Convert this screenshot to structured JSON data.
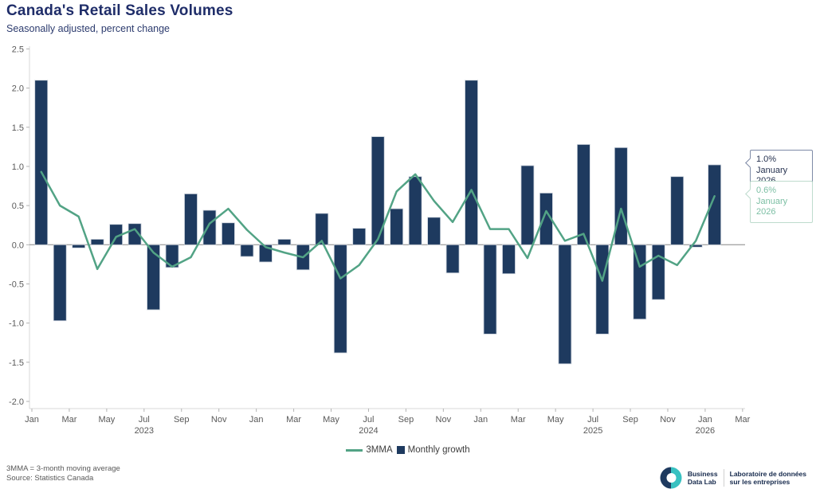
{
  "header": {
    "title": "Canada's Retail Sales Volumes",
    "subtitle": "Seasonally adjusted, percent change"
  },
  "chart_data": {
    "type": "bar+line",
    "categories": [
      "Jan 2023",
      "Feb 2023",
      "Mar 2023",
      "Apr 2023",
      "May 2023",
      "Jun 2023",
      "Jul 2023",
      "Aug 2023",
      "Sep 2023",
      "Oct 2023",
      "Nov 2023",
      "Dec 2023",
      "Jan 2024",
      "Feb 2024",
      "Mar 2024",
      "Apr 2024",
      "May 2024",
      "Jun 2024",
      "Jul 2024",
      "Aug 2024",
      "Sep 2024",
      "Oct 2024",
      "Nov 2024",
      "Dec 2024",
      "Jan 2025",
      "Feb 2025",
      "Mar 2025",
      "Apr 2025",
      "May 2025",
      "Jun 2025",
      "Jul 2025",
      "Aug 2025",
      "Sep 2025",
      "Oct 2025",
      "Nov 2025",
      "Dec 2025",
      "Jan 2026"
    ],
    "series": [
      {
        "name": "Monthly growth",
        "type": "bar",
        "color": "#1e3a5f",
        "values": [
          2.1,
          -0.97,
          -0.04,
          0.07,
          0.26,
          0.27,
          -0.83,
          -0.29,
          0.65,
          0.44,
          0.28,
          -0.15,
          -0.22,
          0.07,
          -0.32,
          0.4,
          -1.38,
          0.21,
          1.38,
          0.46,
          0.87,
          0.35,
          -0.36,
          2.1,
          -1.14,
          -0.37,
          1.01,
          0.66,
          -1.52,
          1.28,
          -1.14,
          1.24,
          -0.95,
          -0.7,
          0.87,
          -0.03,
          1.02
        ]
      },
      {
        "name": "3MMA",
        "type": "line",
        "color": "#52a385",
        "values": [
          0.93,
          0.5,
          0.36,
          -0.31,
          0.1,
          0.2,
          -0.1,
          -0.28,
          -0.16,
          0.27,
          0.46,
          0.19,
          -0.03,
          -0.1,
          -0.16,
          0.05,
          -0.43,
          -0.26,
          0.07,
          0.68,
          0.9,
          0.56,
          0.29,
          0.7,
          0.2,
          0.2,
          -0.17,
          0.43,
          0.05,
          0.14,
          -0.46,
          0.46,
          -0.28,
          -0.14,
          -0.26,
          0.05,
          0.62
        ]
      }
    ],
    "ylim": [
      -2.0,
      2.5
    ],
    "y_ticks": [
      "2.5",
      "2.0",
      "1.5",
      "1.0",
      "0.5",
      "0.0",
      "-0.5",
      "-1.0",
      "-1.5",
      "-2.0"
    ],
    "x_ticks": [
      {
        "label": "Jan"
      },
      {
        "label": "Mar"
      },
      {
        "label": "May"
      },
      {
        "label": "Jul",
        "year": "2023"
      },
      {
        "label": "Sep"
      },
      {
        "label": "Nov"
      },
      {
        "label": "Jan"
      },
      {
        "label": "Mar"
      },
      {
        "label": "May"
      },
      {
        "label": "Jul",
        "year": "2024"
      },
      {
        "label": "Sep"
      },
      {
        "label": "Nov"
      },
      {
        "label": "Jan"
      },
      {
        "label": "Mar"
      },
      {
        "label": "May"
      },
      {
        "label": "Jul",
        "year": "2025"
      },
      {
        "label": "Sep"
      },
      {
        "label": "Nov"
      },
      {
        "label": "Jan",
        "year": "2026"
      },
      {
        "label": "Mar"
      }
    ],
    "grid": "zero-line-only",
    "legend_position": "bottom-center",
    "annotations": [
      {
        "value": "1.0%",
        "label": "January 2026",
        "series": "Monthly growth"
      },
      {
        "value": "0.6%",
        "label": "January 2026",
        "series": "3MMA"
      }
    ]
  },
  "legend": [
    {
      "label": "3MMA"
    },
    {
      "label": "Monthly growth"
    }
  ],
  "footer": {
    "note1": "3MMA = 3-month moving average",
    "note2": "Source: Statistics Canada"
  },
  "logo": {
    "en_line1": "Business",
    "en_line2": "Data Lab",
    "fr_line1": "Laboratoire de données",
    "fr_line2": "sur les entreprises"
  }
}
